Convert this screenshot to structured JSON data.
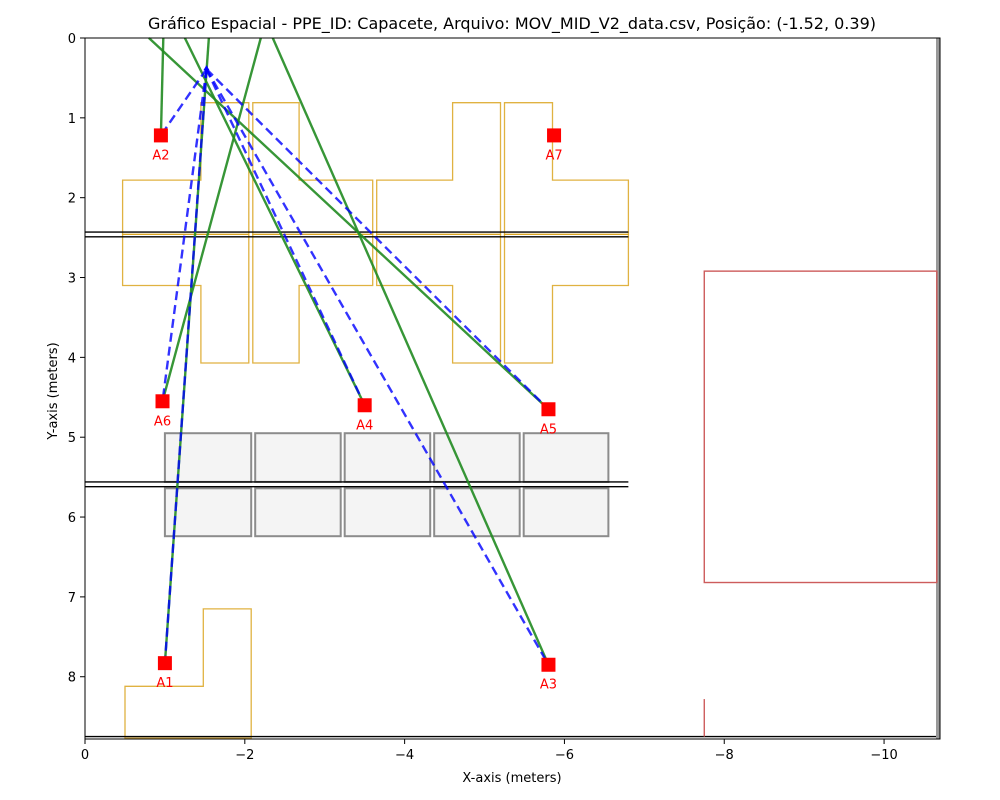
{
  "chart_data": {
    "type": "scatter",
    "title": "Gráfico Espacial - PPE_ID: Capacete, Arquivo: MOV_MID_V2_data.csv, Posição: (-1.52, 0.39)",
    "xlabel": "X-axis (meters)",
    "ylabel": "Y-axis (meters)",
    "xlim": [
      0,
      -10.7
    ],
    "ylim": [
      8.78,
      0
    ],
    "x_ticks": [
      0,
      -2,
      -4,
      -6,
      -8,
      -10
    ],
    "x_tick_labels": [
      "0",
      "−2",
      "−4",
      "−6",
      "−8",
      "−10"
    ],
    "y_ticks": [
      0,
      1,
      2,
      3,
      4,
      5,
      6,
      7,
      8
    ],
    "y_tick_labels": [
      "0",
      "1",
      "2",
      "3",
      "4",
      "5",
      "6",
      "7",
      "8"
    ],
    "grid": false,
    "person_position": {
      "x": -1.52,
      "y": 0.39
    },
    "anchors": [
      {
        "label": "A1",
        "x": -1.0,
        "y": 7.83
      },
      {
        "label": "A2",
        "x": -0.95,
        "y": 1.22
      },
      {
        "label": "A3",
        "x": -5.8,
        "y": 7.85
      },
      {
        "label": "A4",
        "x": -3.5,
        "y": 4.6
      },
      {
        "label": "A5",
        "x": -5.8,
        "y": 4.65
      },
      {
        "label": "A6",
        "x": -0.97,
        "y": 4.55
      },
      {
        "label": "A7",
        "x": -5.87,
        "y": 1.22
      }
    ],
    "dashed_links": [
      {
        "from": [
          -1.52,
          0.39
        ],
        "to": [
          -0.95,
          1.22
        ]
      },
      {
        "from": [
          -1.52,
          0.39
        ],
        "to": [
          -1.0,
          7.83
        ]
      },
      {
        "from": [
          -1.52,
          0.39
        ],
        "to": [
          -5.8,
          7.85
        ]
      },
      {
        "from": [
          -1.52,
          0.39
        ],
        "to": [
          -3.5,
          4.6
        ]
      },
      {
        "from": [
          -1.52,
          0.39
        ],
        "to": [
          -5.8,
          4.65
        ]
      },
      {
        "from": [
          -1.52,
          0.39
        ],
        "to": [
          -0.97,
          4.55
        ]
      }
    ],
    "solid_links": [
      {
        "from": [
          -0.98,
          0.0
        ],
        "to": [
          -0.95,
          1.22
        ]
      },
      {
        "from": [
          -1.55,
          0.0
        ],
        "to": [
          -1.0,
          7.83
        ]
      },
      {
        "from": [
          -2.2,
          0.0
        ],
        "to": [
          -0.97,
          4.55
        ]
      },
      {
        "from": [
          -1.25,
          0.0
        ],
        "to": [
          -3.5,
          4.6
        ]
      },
      {
        "from": [
          -0.8,
          0.0
        ],
        "to": [
          -5.8,
          4.65
        ]
      },
      {
        "from": [
          -2.35,
          0.0
        ],
        "to": [
          -5.8,
          7.85
        ]
      }
    ],
    "colors": {
      "anchor": "#ff0000",
      "dashed_link": "#0000ff",
      "solid_link": "#228b22",
      "room_outline": "#daa520",
      "table_outline": "#808080",
      "wall": "#000000",
      "red_room": "#cd5c5c"
    }
  }
}
